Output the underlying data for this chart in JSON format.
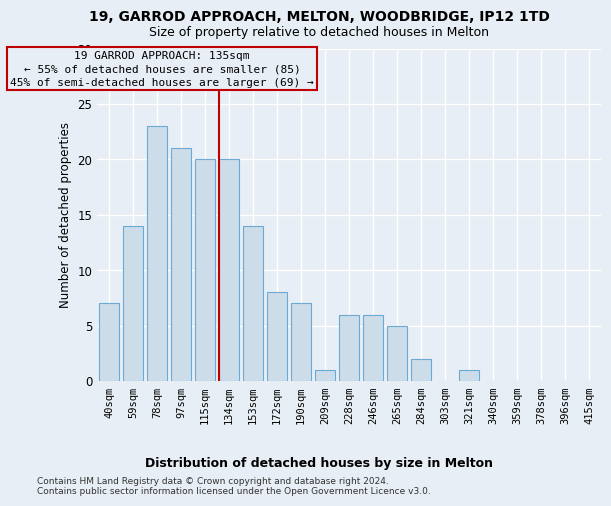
{
  "title1": "19, GARROD APPROACH, MELTON, WOODBRIDGE, IP12 1TD",
  "title2": "Size of property relative to detached houses in Melton",
  "xlabel": "Distribution of detached houses by size in Melton",
  "ylabel": "Number of detached properties",
  "categories": [
    "40sqm",
    "59sqm",
    "78sqm",
    "97sqm",
    "115sqm",
    "134sqm",
    "153sqm",
    "172sqm",
    "190sqm",
    "209sqm",
    "228sqm",
    "246sqm",
    "265sqm",
    "284sqm",
    "303sqm",
    "321sqm",
    "340sqm",
    "359sqm",
    "378sqm",
    "396sqm",
    "415sqm"
  ],
  "values": [
    7,
    14,
    23,
    21,
    20,
    20,
    14,
    8,
    7,
    1,
    6,
    6,
    5,
    2,
    0,
    1,
    0,
    0,
    0,
    0,
    0
  ],
  "bar_color": "#ccdce8",
  "bar_edge_color": "#6aaad4",
  "vline_color": "#c00000",
  "ann_line1": "19 GARROD APPROACH: 135sqm",
  "ann_line2": "← 55% of detached houses are smaller (85)",
  "ann_line3": "45% of semi-detached houses are larger (69) →",
  "ylim": [
    0,
    30
  ],
  "yticks": [
    0,
    5,
    10,
    15,
    20,
    25,
    30
  ],
  "background_color": "#e8eef5",
  "grid_color": "#ffffff",
  "footer_line1": "Contains HM Land Registry data © Crown copyright and database right 2024.",
  "footer_line2": "Contains public sector information licensed under the Open Government Licence v3.0."
}
